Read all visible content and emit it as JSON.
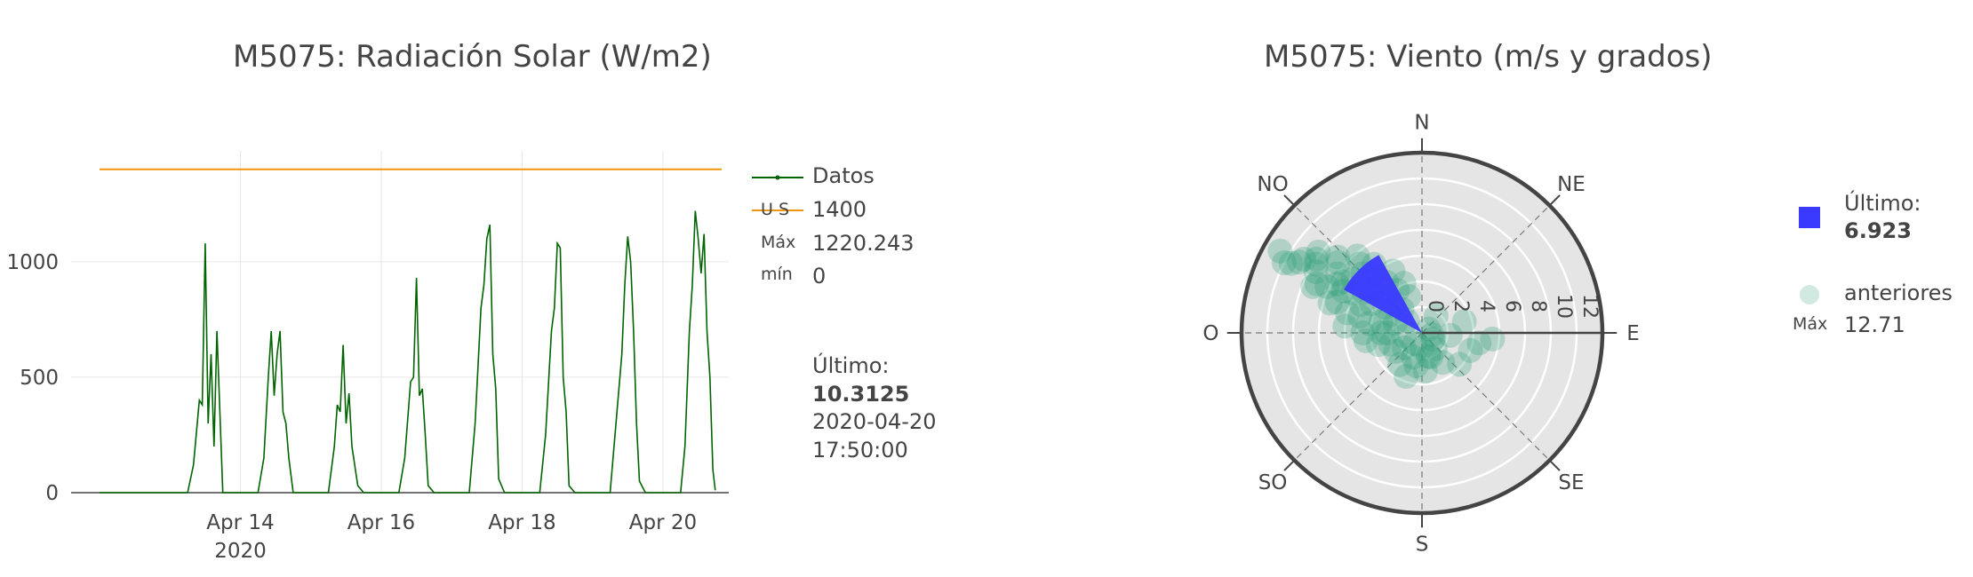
{
  "chart_data": [
    {
      "type": "line",
      "title": "M5075: Radiación Solar (W/m2)",
      "x_range": [
        "2020-04-12",
        "2020-04-20T20:00"
      ],
      "ylim": [
        0,
        1480
      ],
      "yticks": [
        0,
        500,
        1000
      ],
      "ytick_labels": [
        "0",
        "500",
        "1000"
      ],
      "xticks": [
        "2020-04-14",
        "2020-04-16",
        "2020-04-18",
        "2020-04-20"
      ],
      "xtick_labels": [
        "Apr 14",
        "Apr 16",
        "Apr 18",
        "Apr 20"
      ],
      "xtick_sublabel": "2020",
      "grid": true,
      "legend_position": "right",
      "series": [
        {
          "name": "Datos",
          "color": "#006400",
          "x": [
            "2020-04-12T00:00",
            "2020-04-12T06:00",
            "2020-04-12T07:30",
            "2020-04-12T09:00",
            "2020-04-12T10:00",
            "2020-04-12T11:00",
            "2020-04-12T12:00",
            "2020-04-12T13:00",
            "2020-04-12T14:00",
            "2020-04-12T15:00",
            "2020-04-12T16:00",
            "2020-04-12T18:00",
            "2020-04-12T20:00",
            "2020-04-13T06:00",
            "2020-04-13T08:00",
            "2020-04-13T10:00",
            "2020-04-13T11:00",
            "2020-04-13T12:00",
            "2020-04-13T13:00",
            "2020-04-13T14:00",
            "2020-04-13T15:00",
            "2020-04-13T16:00",
            "2020-04-13T18:00",
            "2020-04-13T20:00",
            "2020-04-14T06:00",
            "2020-04-14T08:00",
            "2020-04-14T09:30",
            "2020-04-14T10:30",
            "2020-04-14T11:30",
            "2020-04-14T12:30",
            "2020-04-14T13:30",
            "2020-04-14T14:30",
            "2020-04-14T15:30",
            "2020-04-14T16:30",
            "2020-04-14T18:00",
            "2020-04-15T06:00",
            "2020-04-15T08:00",
            "2020-04-15T09:00",
            "2020-04-15T10:00",
            "2020-04-15T11:00",
            "2020-04-15T12:00",
            "2020-04-15T13:00",
            "2020-04-15T14:00",
            "2020-04-15T16:00",
            "2020-04-15T18:00",
            "2020-04-16T06:00",
            "2020-04-16T08:00",
            "2020-04-16T10:00",
            "2020-04-16T11:00",
            "2020-04-16T12:00",
            "2020-04-16T13:00",
            "2020-04-16T14:00",
            "2020-04-16T15:00",
            "2020-04-16T16:00",
            "2020-04-16T18:00",
            "2020-04-17T06:00",
            "2020-04-17T08:00",
            "2020-04-17T10:00",
            "2020-04-17T11:00",
            "2020-04-17T12:00",
            "2020-04-17T13:00",
            "2020-04-17T14:00",
            "2020-04-17T15:00",
            "2020-04-17T16:00",
            "2020-04-17T18:00",
            "2020-04-18T06:00",
            "2020-04-18T08:00",
            "2020-04-18T10:00",
            "2020-04-18T11:00",
            "2020-04-18T12:00",
            "2020-04-18T13:00",
            "2020-04-18T14:00",
            "2020-04-18T15:00",
            "2020-04-18T16:00",
            "2020-04-18T18:00",
            "2020-04-19T06:00",
            "2020-04-19T08:00",
            "2020-04-19T10:00",
            "2020-04-19T11:00",
            "2020-04-19T12:00",
            "2020-04-19T13:00",
            "2020-04-19T14:00",
            "2020-04-19T15:00",
            "2020-04-19T16:00",
            "2020-04-19T18:00",
            "2020-04-20T06:00",
            "2020-04-20T07:30",
            "2020-04-20T09:00",
            "2020-04-20T10:00",
            "2020-04-20T11:00",
            "2020-04-20T12:00",
            "2020-04-20T13:00",
            "2020-04-20T14:00",
            "2020-04-20T15:00",
            "2020-04-20T16:00",
            "2020-04-20T17:00",
            "2020-04-20T17:50"
          ],
          "y": [
            0,
            0,
            0,
            0,
            0,
            0,
            0,
            0,
            0,
            0,
            0,
            0,
            0,
            0,
            120,
            400,
            380,
            1080,
            300,
            600,
            200,
            700,
            0,
            0,
            0,
            150,
            500,
            700,
            420,
            600,
            700,
            350,
            300,
            150,
            0,
            0,
            200,
            380,
            350,
            640,
            300,
            430,
            200,
            30,
            0,
            0,
            150,
            480,
            500,
            930,
            420,
            450,
            250,
            30,
            0,
            0,
            300,
            800,
            900,
            1100,
            1160,
            600,
            450,
            60,
            0,
            0,
            250,
            700,
            800,
            1080,
            1060,
            500,
            350,
            30,
            0,
            0,
            300,
            600,
            900,
            1110,
            1000,
            700,
            300,
            50,
            0,
            0,
            200,
            700,
            900,
            1220,
            1100,
            950,
            1120,
            700,
            500,
            100,
            10.3125
          ]
        },
        {
          "name": "U S",
          "color": "#f0950c",
          "x": [
            "2020-04-12T00:00",
            "2020-04-20T20:00"
          ],
          "y": [
            1400,
            1400
          ]
        }
      ],
      "legend": {
        "series_label": "Datos",
        "threshold_label": "U S",
        "threshold_value": "1400",
        "max_label": "Máx",
        "max_value": "1220.243",
        "min_label": "mín",
        "min_value": "0",
        "last_label": "Último:",
        "last_value": "10.3125",
        "last_date": "2020-04-20",
        "last_time": "17:50:00"
      }
    },
    {
      "type": "scatter",
      "subtype": "polar",
      "title": "M5075: Viento (m/s y grados)",
      "radial_range": [
        0,
        14
      ],
      "radial_ticks": [
        "0",
        "2",
        "4",
        "6",
        "8",
        "10",
        "12"
      ],
      "angular_labels": [
        "N",
        "NE",
        "E",
        "SE",
        "S",
        "SO",
        "O",
        "NO"
      ],
      "angular_directions_deg": [
        0,
        45,
        90,
        135,
        180,
        225,
        270,
        315
      ],
      "series": [
        {
          "name": "Último:",
          "color": "#3a3aff",
          "marker": "bar",
          "direction_deg": 315,
          "value": 6.923
        },
        {
          "name": "anteriores",
          "color": "#2a9d78",
          "marker": "circle",
          "points_speed_direction": [
            [
              12.71,
              300
            ],
            [
              11.5,
              298
            ],
            [
              10.8,
              302
            ],
            [
              10.0,
              305
            ],
            [
              9.5,
              300
            ],
            [
              9.0,
              295
            ],
            [
              8.5,
              310
            ],
            [
              8.0,
              305
            ],
            [
              7.6,
              300
            ],
            [
              7.2,
              318
            ],
            [
              7.0,
              290
            ],
            [
              6.8,
              308
            ],
            [
              6.5,
              315
            ],
            [
              6.2,
              300
            ],
            [
              6.0,
              285
            ],
            [
              5.8,
              320
            ],
            [
              5.5,
              305
            ],
            [
              5.2,
              295
            ],
            [
              5.0,
              310
            ],
            [
              4.8,
              325
            ],
            [
              4.5,
              300
            ],
            [
              4.2,
              280
            ],
            [
              4.0,
              315
            ],
            [
              3.8,
              330
            ],
            [
              3.5,
              305
            ],
            [
              3.2,
              270
            ],
            [
              3.0,
              340
            ],
            [
              2.8,
              300
            ],
            [
              2.6,
              250
            ],
            [
              2.4,
              320
            ],
            [
              2.2,
              290
            ],
            [
              2.0,
              200
            ],
            [
              2.0,
              160
            ],
            [
              1.8,
              230
            ],
            [
              1.6,
              140
            ],
            [
              1.5,
              310
            ],
            [
              1.4,
              260
            ],
            [
              1.2,
              180
            ],
            [
              1.0,
              120
            ],
            [
              1.0,
              215
            ],
            [
              0.8,
              100
            ],
            [
              0.6,
              60
            ],
            [
              5.0,
              285
            ],
            [
              4.6,
              270
            ],
            [
              4.4,
              262
            ],
            [
              6.0,
              275
            ],
            [
              7.5,
              288
            ],
            [
              9.2,
              293
            ],
            [
              3.5,
              255
            ],
            [
              2.5,
              235
            ],
            [
              3.0,
              175
            ],
            [
              3.6,
              200
            ],
            [
              2.8,
              145
            ],
            [
              3.8,
              130
            ],
            [
              4.0,
              110
            ],
            [
              2.2,
              95
            ],
            [
              4.5,
              100
            ],
            [
              3.4,
              75
            ],
            [
              1.7,
              40
            ],
            [
              5.5,
              95
            ],
            [
              3.0,
              215
            ],
            [
              2.6,
              190
            ],
            [
              1.9,
              165
            ],
            [
              6.5,
              325
            ],
            [
              7.8,
              320
            ],
            [
              8.8,
              312
            ],
            [
              10.2,
              308
            ],
            [
              11.0,
              300
            ],
            [
              12.0,
              297
            ],
            [
              5.3,
              335
            ],
            [
              4.1,
              340
            ],
            [
              6.9,
              298
            ],
            [
              7.3,
              303
            ],
            [
              8.2,
              296
            ],
            [
              9.8,
              303
            ],
            [
              3.3,
              285
            ],
            [
              2.7,
              270
            ]
          ]
        }
      ],
      "legend": {
        "last_label": "Último:",
        "last_value": "6.923",
        "prev_label": "anteriores",
        "max_label": "Máx",
        "max_value": "12.71"
      }
    }
  ]
}
